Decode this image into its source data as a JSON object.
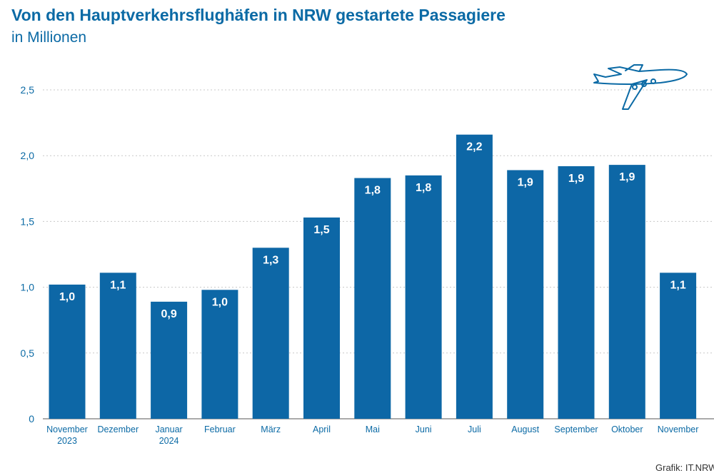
{
  "header": {
    "title": "Von den Hauptverkehrsflughäfen in NRW gestartete Passagiere",
    "subtitle": "in Millionen"
  },
  "footer": {
    "source": "Grafik: IT.NRW"
  },
  "colors": {
    "bar": "#0d67a6",
    "text": "#0b6aa5",
    "grid": "#c8c8c8",
    "axis": "#555555"
  },
  "icons": {
    "decoration": "airplane-icon"
  },
  "chart_data": {
    "type": "bar",
    "title": "Von den Hauptverkehrsflughäfen in NRW gestartete Passagiere",
    "subtitle": "in Millionen",
    "xlabel": "",
    "ylabel": "",
    "ylim": [
      0,
      2.5
    ],
    "yticks": [
      0,
      0.5,
      1.0,
      1.5,
      2.0,
      2.5
    ],
    "ytick_labels": [
      "0",
      "0,5",
      "1,0",
      "1,5",
      "2,0",
      "2,5"
    ],
    "grid": true,
    "categories": [
      [
        "November",
        "2023"
      ],
      [
        "Dezember"
      ],
      [
        "Januar",
        "2024"
      ],
      [
        "Februar"
      ],
      [
        "März"
      ],
      [
        "April"
      ],
      [
        "Mai"
      ],
      [
        "Juni"
      ],
      [
        "Juli"
      ],
      [
        "August"
      ],
      [
        "September"
      ],
      [
        "Oktober"
      ],
      [
        "November"
      ]
    ],
    "values": [
      1.02,
      1.11,
      0.89,
      0.98,
      1.3,
      1.53,
      1.83,
      1.85,
      2.16,
      1.89,
      1.92,
      1.93,
      1.11
    ],
    "value_labels": [
      "1,0",
      "1,1",
      "0,9",
      "1,0",
      "1,3",
      "1,5",
      "1,8",
      "1,8",
      "2,2",
      "1,9",
      "1,9",
      "1,9",
      "1,1"
    ]
  }
}
